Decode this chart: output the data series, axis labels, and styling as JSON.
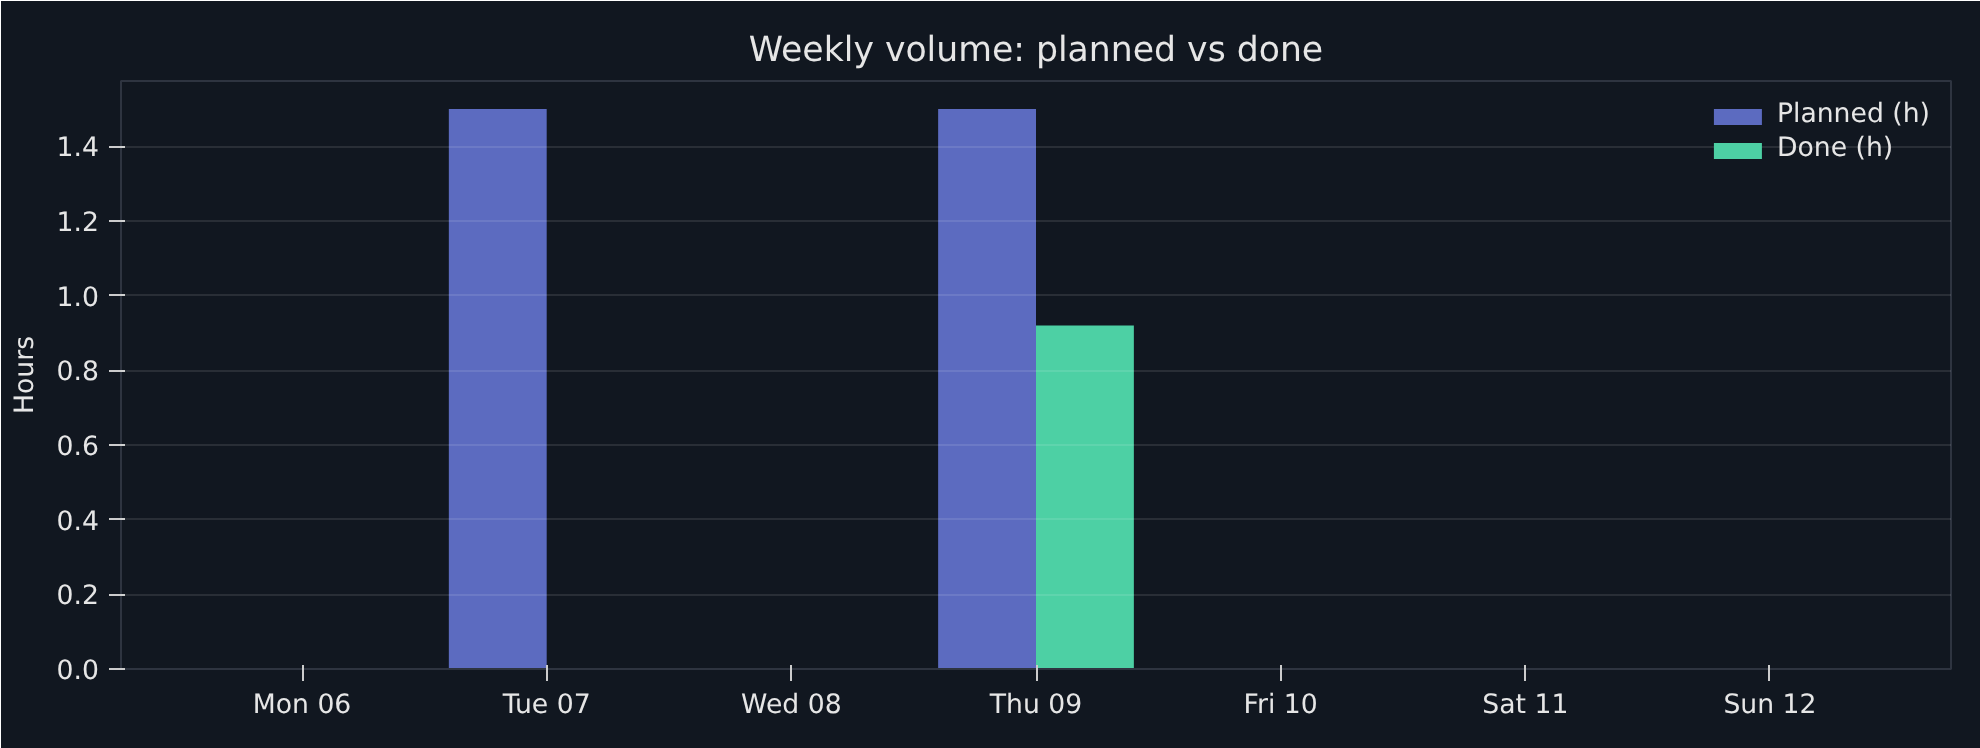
{
  "chart_data": {
    "type": "bar",
    "title": "Weekly volume: planned vs done",
    "ylabel": "Hours",
    "categories": [
      "Mon 06",
      "Tue 07",
      "Wed 08",
      "Thu 09",
      "Fri 10",
      "Sat 11",
      "Sun 12"
    ],
    "series": [
      {
        "name": "Planned (h)",
        "color": "#5c6bc0",
        "values": [
          0,
          1.5,
          0,
          1.5,
          0,
          0,
          0
        ]
      },
      {
        "name": "Done (h)",
        "color": "#4dd0a4",
        "values": [
          0,
          0,
          0,
          0.92,
          0,
          0,
          0
        ]
      }
    ],
    "ylim": [
      0,
      1.575
    ],
    "yticks": [
      {
        "value": 0,
        "label": "0.0"
      },
      0.2,
      0.4,
      0.6,
      0.8,
      {
        "value": 1,
        "label": "1.0"
      },
      1.2,
      1.4
    ],
    "grid": "y",
    "legend": "top right"
  }
}
